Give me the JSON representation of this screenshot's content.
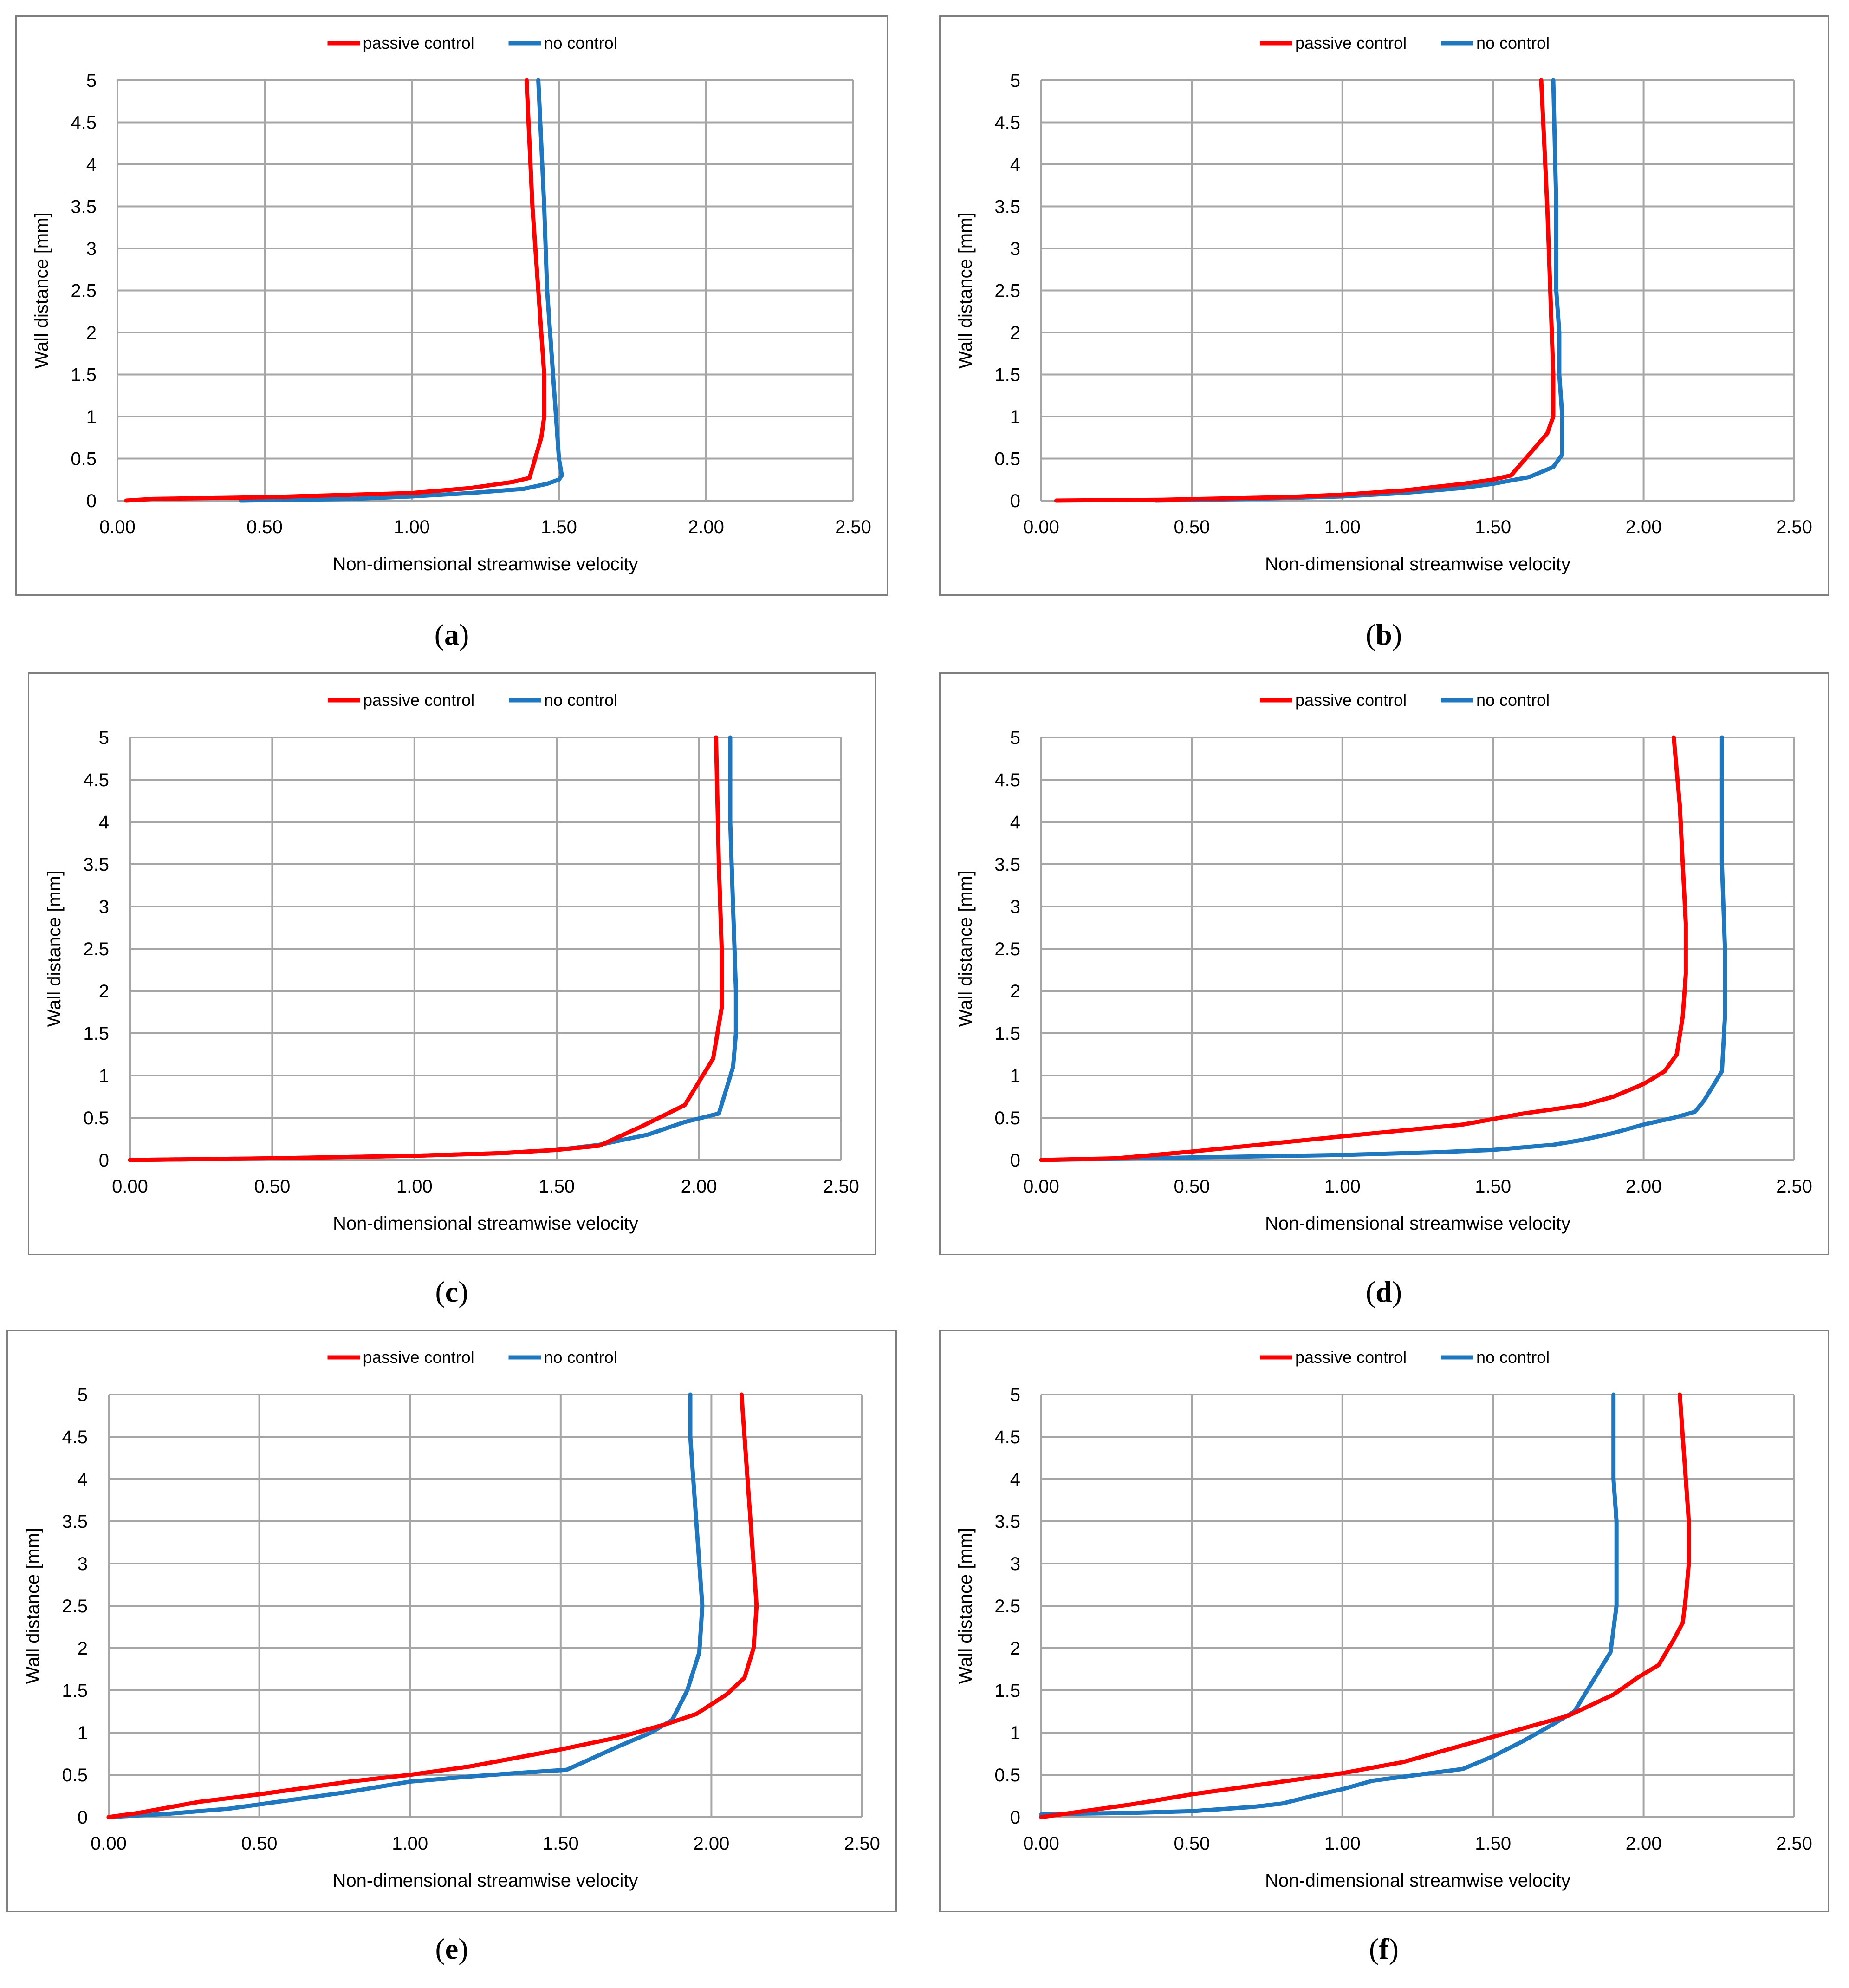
{
  "colors": {
    "passive": "#ff0000",
    "none": "#1f77c0",
    "grid": "#a6a6a6",
    "frame": "#7f7f7f"
  },
  "chart_data": [
    {
      "type": "line",
      "caption": "a",
      "xlabel": "Non-dimensional  streamwise velocity",
      "ylabel": "Wall distance [mm]",
      "xlim": [
        0,
        2.5
      ],
      "ylim": [
        0,
        5
      ],
      "xticks": [
        "0.00",
        "0.50",
        "1.00",
        "1.50",
        "2.00",
        "2.50"
      ],
      "yticks": [
        "0",
        "0.5",
        "1",
        "1.5",
        "2",
        "2.5",
        "3",
        "3.5",
        "4",
        "4.5",
        "5"
      ],
      "series": [
        {
          "name": "passive control",
          "key": "passive",
          "points": [
            [
              0.03,
              0
            ],
            [
              0.12,
              0.02
            ],
            [
              0.5,
              0.04
            ],
            [
              1.0,
              0.09
            ],
            [
              1.2,
              0.15
            ],
            [
              1.34,
              0.22
            ],
            [
              1.4,
              0.27
            ],
            [
              1.44,
              0.75
            ],
            [
              1.45,
              1.0
            ],
            [
              1.45,
              1.5
            ],
            [
              1.43,
              2.5
            ],
            [
              1.41,
              3.5
            ],
            [
              1.39,
              5.0
            ]
          ]
        },
        {
          "name": "no control",
          "key": "none",
          "points": [
            [
              0.42,
              0
            ],
            [
              0.8,
              0.02
            ],
            [
              1.0,
              0.05
            ],
            [
              1.2,
              0.09
            ],
            [
              1.38,
              0.14
            ],
            [
              1.46,
              0.2
            ],
            [
              1.5,
              0.25
            ],
            [
              1.51,
              0.3
            ],
            [
              1.5,
              0.5
            ],
            [
              1.49,
              1.0
            ],
            [
              1.48,
              1.5
            ],
            [
              1.47,
              2.0
            ],
            [
              1.46,
              2.5
            ],
            [
              1.45,
              3.5
            ],
            [
              1.43,
              5.0
            ]
          ]
        }
      ]
    },
    {
      "type": "line",
      "caption": "b",
      "xlabel": "Non-dimensional  streamwise velocity",
      "ylabel": "Wall distance [mm]",
      "xlim": [
        0,
        2.5
      ],
      "ylim": [
        0,
        5
      ],
      "xticks": [
        "0.00",
        "0.50",
        "1.00",
        "1.50",
        "2.00",
        "2.50"
      ],
      "yticks": [
        "0",
        "0.5",
        "1",
        "1.5",
        "2",
        "2.5",
        "3",
        "3.5",
        "4",
        "4.5",
        "5"
      ],
      "series": [
        {
          "name": "passive control",
          "key": "passive",
          "points": [
            [
              0.05,
              0
            ],
            [
              0.4,
              0.01
            ],
            [
              0.8,
              0.04
            ],
            [
              1.0,
              0.07
            ],
            [
              1.2,
              0.12
            ],
            [
              1.4,
              0.2
            ],
            [
              1.5,
              0.25
            ],
            [
              1.56,
              0.3
            ],
            [
              1.62,
              0.55
            ],
            [
              1.68,
              0.8
            ],
            [
              1.7,
              1.0
            ],
            [
              1.7,
              1.5
            ],
            [
              1.69,
              2.5
            ],
            [
              1.68,
              3.5
            ],
            [
              1.66,
              5.0
            ]
          ]
        },
        {
          "name": "no control",
          "key": "none",
          "points": [
            [
              0.38,
              0
            ],
            [
              0.7,
              0.02
            ],
            [
              1.0,
              0.05
            ],
            [
              1.2,
              0.09
            ],
            [
              1.4,
              0.15
            ],
            [
              1.5,
              0.2
            ],
            [
              1.62,
              0.28
            ],
            [
              1.7,
              0.4
            ],
            [
              1.73,
              0.55
            ],
            [
              1.73,
              1.0
            ],
            [
              1.72,
              1.5
            ],
            [
              1.72,
              2.0
            ],
            [
              1.71,
              2.5
            ],
            [
              1.71,
              3.5
            ],
            [
              1.7,
              5.0
            ]
          ]
        }
      ]
    },
    {
      "type": "line",
      "caption": "c",
      "xlabel": "Non-dimensional  streamwise velocity",
      "ylabel": "Wall distance [mm]",
      "xlim": [
        0,
        2.5
      ],
      "ylim": [
        0,
        5
      ],
      "xticks": [
        "0.00",
        "0.50",
        "1.00",
        "1.50",
        "2.00",
        "2.50"
      ],
      "yticks": [
        "0",
        "0.5",
        "1",
        "1.5",
        "2",
        "2.5",
        "3",
        "3.5",
        "4",
        "4.5",
        "5"
      ],
      "series": [
        {
          "name": "passive control",
          "key": "passive",
          "points": [
            [
              0,
              0
            ],
            [
              0.5,
              0.02
            ],
            [
              1.0,
              0.05
            ],
            [
              1.3,
              0.08
            ],
            [
              1.5,
              0.12
            ],
            [
              1.65,
              0.17
            ],
            [
              1.8,
              0.4
            ],
            [
              1.95,
              0.65
            ],
            [
              2.05,
              1.2
            ],
            [
              2.08,
              1.8
            ],
            [
              2.08,
              2.5
            ],
            [
              2.07,
              3.5
            ],
            [
              2.06,
              5.0
            ]
          ]
        },
        {
          "name": "no control",
          "key": "none",
          "points": [
            [
              0,
              0
            ],
            [
              0.5,
              0.02
            ],
            [
              1.0,
              0.05
            ],
            [
              1.3,
              0.08
            ],
            [
              1.5,
              0.12
            ],
            [
              1.65,
              0.18
            ],
            [
              1.82,
              0.3
            ],
            [
              1.95,
              0.45
            ],
            [
              2.07,
              0.55
            ],
            [
              2.12,
              1.1
            ],
            [
              2.13,
              1.5
            ],
            [
              2.13,
              2.0
            ],
            [
              2.12,
              3.0
            ],
            [
              2.11,
              4.0
            ],
            [
              2.11,
              5.0
            ]
          ]
        }
      ]
    },
    {
      "type": "line",
      "caption": "d",
      "xlabel": "Non-dimensional  streamwise velocity",
      "ylabel": "Wall distance [mm]",
      "xlim": [
        0,
        2.5
      ],
      "ylim": [
        0,
        5
      ],
      "xticks": [
        "0.00",
        "0.50",
        "1.00",
        "1.50",
        "2.00",
        "2.50"
      ],
      "yticks": [
        "0",
        "0.5",
        "1",
        "1.5",
        "2",
        "2.5",
        "3",
        "3.5",
        "4",
        "4.5",
        "5"
      ],
      "series": [
        {
          "name": "passive control",
          "key": "passive",
          "points": [
            [
              0,
              0
            ],
            [
              0.25,
              0.02
            ],
            [
              0.5,
              0.1
            ],
            [
              1.0,
              0.28
            ],
            [
              1.4,
              0.42
            ],
            [
              1.6,
              0.55
            ],
            [
              1.8,
              0.65
            ],
            [
              1.9,
              0.75
            ],
            [
              2.0,
              0.9
            ],
            [
              2.07,
              1.05
            ],
            [
              2.11,
              1.25
            ],
            [
              2.13,
              1.7
            ],
            [
              2.14,
              2.2
            ],
            [
              2.14,
              2.8
            ],
            [
              2.13,
              3.5
            ],
            [
              2.12,
              4.2
            ],
            [
              2.1,
              5.0
            ]
          ]
        },
        {
          "name": "no control",
          "key": "none",
          "points": [
            [
              0,
              0
            ],
            [
              0.5,
              0.03
            ],
            [
              1.0,
              0.06
            ],
            [
              1.3,
              0.09
            ],
            [
              1.5,
              0.12
            ],
            [
              1.7,
              0.18
            ],
            [
              1.8,
              0.24
            ],
            [
              1.9,
              0.32
            ],
            [
              2.0,
              0.42
            ],
            [
              2.1,
              0.5
            ],
            [
              2.17,
              0.57
            ],
            [
              2.2,
              0.7
            ],
            [
              2.26,
              1.05
            ],
            [
              2.27,
              1.7
            ],
            [
              2.27,
              2.5
            ],
            [
              2.26,
              3.5
            ],
            [
              2.26,
              5.0
            ]
          ]
        }
      ]
    },
    {
      "type": "line",
      "caption": "e",
      "xlabel": "Non-dimensional  streamwise velocity",
      "ylabel": "Wall distance [mm]",
      "xlim": [
        0,
        2.5
      ],
      "ylim": [
        0,
        5
      ],
      "xticks": [
        "0.00",
        "0.50",
        "1.00",
        "1.50",
        "2.00",
        "2.50"
      ],
      "yticks": [
        "0",
        "0.5",
        "1",
        "1.5",
        "2",
        "2.5",
        "3",
        "3.5",
        "4",
        "4.5",
        "5"
      ],
      "series": [
        {
          "name": "passive control",
          "key": "passive",
          "points": [
            [
              0,
              0
            ],
            [
              0.1,
              0.05
            ],
            [
              0.3,
              0.18
            ],
            [
              0.5,
              0.27
            ],
            [
              0.8,
              0.42
            ],
            [
              1.0,
              0.5
            ],
            [
              1.2,
              0.6
            ],
            [
              1.5,
              0.8
            ],
            [
              1.7,
              0.95
            ],
            [
              1.85,
              1.1
            ],
            [
              1.95,
              1.22
            ],
            [
              2.05,
              1.45
            ],
            [
              2.11,
              1.65
            ],
            [
              2.14,
              2.0
            ],
            [
              2.15,
              2.5
            ],
            [
              2.14,
              3.0
            ],
            [
              2.13,
              3.5
            ],
            [
              2.12,
              4.0
            ],
            [
              2.11,
              4.5
            ],
            [
              2.1,
              5.0
            ]
          ]
        },
        {
          "name": "no control",
          "key": "none",
          "points": [
            [
              0,
              0
            ],
            [
              0.2,
              0.04
            ],
            [
              0.4,
              0.1
            ],
            [
              0.6,
              0.2
            ],
            [
              0.8,
              0.3
            ],
            [
              1.0,
              0.42
            ],
            [
              1.2,
              0.48
            ],
            [
              1.35,
              0.52
            ],
            [
              1.52,
              0.56
            ],
            [
              1.7,
              0.85
            ],
            [
              1.8,
              1.0
            ],
            [
              1.87,
              1.15
            ],
            [
              1.92,
              1.5
            ],
            [
              1.96,
              1.95
            ],
            [
              1.97,
              2.5
            ],
            [
              1.96,
              3.0
            ],
            [
              1.95,
              3.5
            ],
            [
              1.94,
              4.0
            ],
            [
              1.93,
              4.5
            ],
            [
              1.93,
              5.0
            ]
          ]
        }
      ]
    },
    {
      "type": "line",
      "caption": "f",
      "xlabel": "Non-dimensional  streamwise velocity",
      "ylabel": "Wall distance [mm]",
      "xlim": [
        0,
        2.5
      ],
      "ylim": [
        0,
        5
      ],
      "xticks": [
        "0.00",
        "0.50",
        "1.00",
        "1.50",
        "2.00",
        "2.50"
      ],
      "yticks": [
        "0",
        "0.5",
        "1",
        "1.5",
        "2",
        "2.5",
        "3",
        "3.5",
        "4",
        "4.5",
        "5"
      ],
      "series": [
        {
          "name": "passive control",
          "key": "passive",
          "points": [
            [
              0,
              0
            ],
            [
              0.1,
              0.05
            ],
            [
              0.3,
              0.15
            ],
            [
              0.5,
              0.27
            ],
            [
              0.8,
              0.42
            ],
            [
              1.0,
              0.52
            ],
            [
              1.2,
              0.65
            ],
            [
              1.4,
              0.85
            ],
            [
              1.6,
              1.05
            ],
            [
              1.75,
              1.2
            ],
            [
              1.9,
              1.45
            ],
            [
              1.98,
              1.65
            ],
            [
              2.05,
              1.8
            ],
            [
              2.1,
              2.1
            ],
            [
              2.13,
              2.3
            ],
            [
              2.14,
              2.6
            ],
            [
              2.15,
              3.0
            ],
            [
              2.15,
              3.5
            ],
            [
              2.14,
              4.0
            ],
            [
              2.13,
              4.5
            ],
            [
              2.12,
              5.0
            ]
          ]
        },
        {
          "name": "no control",
          "key": "none",
          "points": [
            [
              0,
              0.03
            ],
            [
              0.1,
              0.04
            ],
            [
              0.3,
              0.05
            ],
            [
              0.5,
              0.07
            ],
            [
              0.7,
              0.12
            ],
            [
              0.8,
              0.16
            ],
            [
              0.9,
              0.25
            ],
            [
              1.0,
              0.33
            ],
            [
              1.1,
              0.43
            ],
            [
              1.25,
              0.5
            ],
            [
              1.4,
              0.57
            ],
            [
              1.5,
              0.72
            ],
            [
              1.6,
              0.9
            ],
            [
              1.7,
              1.1
            ],
            [
              1.77,
              1.25
            ],
            [
              1.83,
              1.6
            ],
            [
              1.89,
              1.95
            ],
            [
              1.91,
              2.5
            ],
            [
              1.91,
              3.0
            ],
            [
              1.91,
              3.5
            ],
            [
              1.9,
              4.0
            ],
            [
              1.9,
              4.5
            ],
            [
              1.9,
              5.0
            ]
          ]
        }
      ]
    }
  ]
}
